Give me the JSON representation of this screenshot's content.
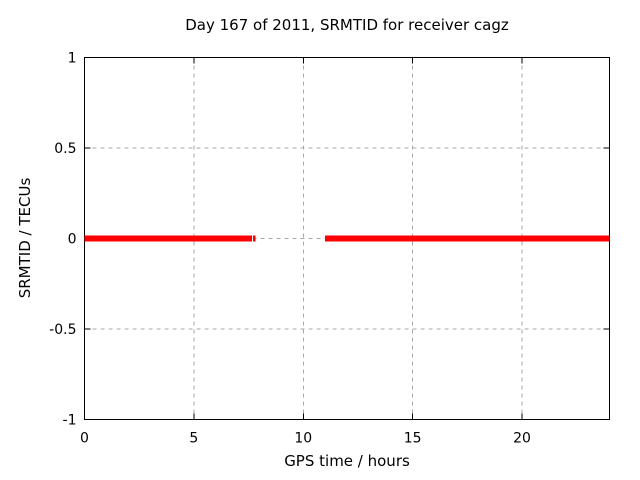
{
  "chart_data": {
    "type": "line",
    "title": "Day 167 of 2011, SRMTID for receiver cagz",
    "xlabel": "GPS time / hours",
    "ylabel": "SRMTID / TECUs",
    "xlim": [
      0,
      24
    ],
    "ylim": [
      -1,
      1
    ],
    "xticks": [
      0,
      5,
      10,
      15,
      20
    ],
    "yticks": [
      -1,
      -0.5,
      0,
      0.5,
      1
    ],
    "grid": true,
    "legend": "none",
    "series": [
      {
        "name": "SRMTID",
        "value": 0,
        "color": "#ff0000",
        "line_width": 6,
        "segments_hours": [
          [
            0,
            7.65
          ],
          [
            7.7,
            7.82
          ],
          [
            11.0,
            24
          ]
        ]
      }
    ],
    "colors": {
      "background": "#ffffff",
      "border": "#000000",
      "grid": "#a8a8a8",
      "text": "#000000",
      "series": "#ff0000"
    }
  }
}
